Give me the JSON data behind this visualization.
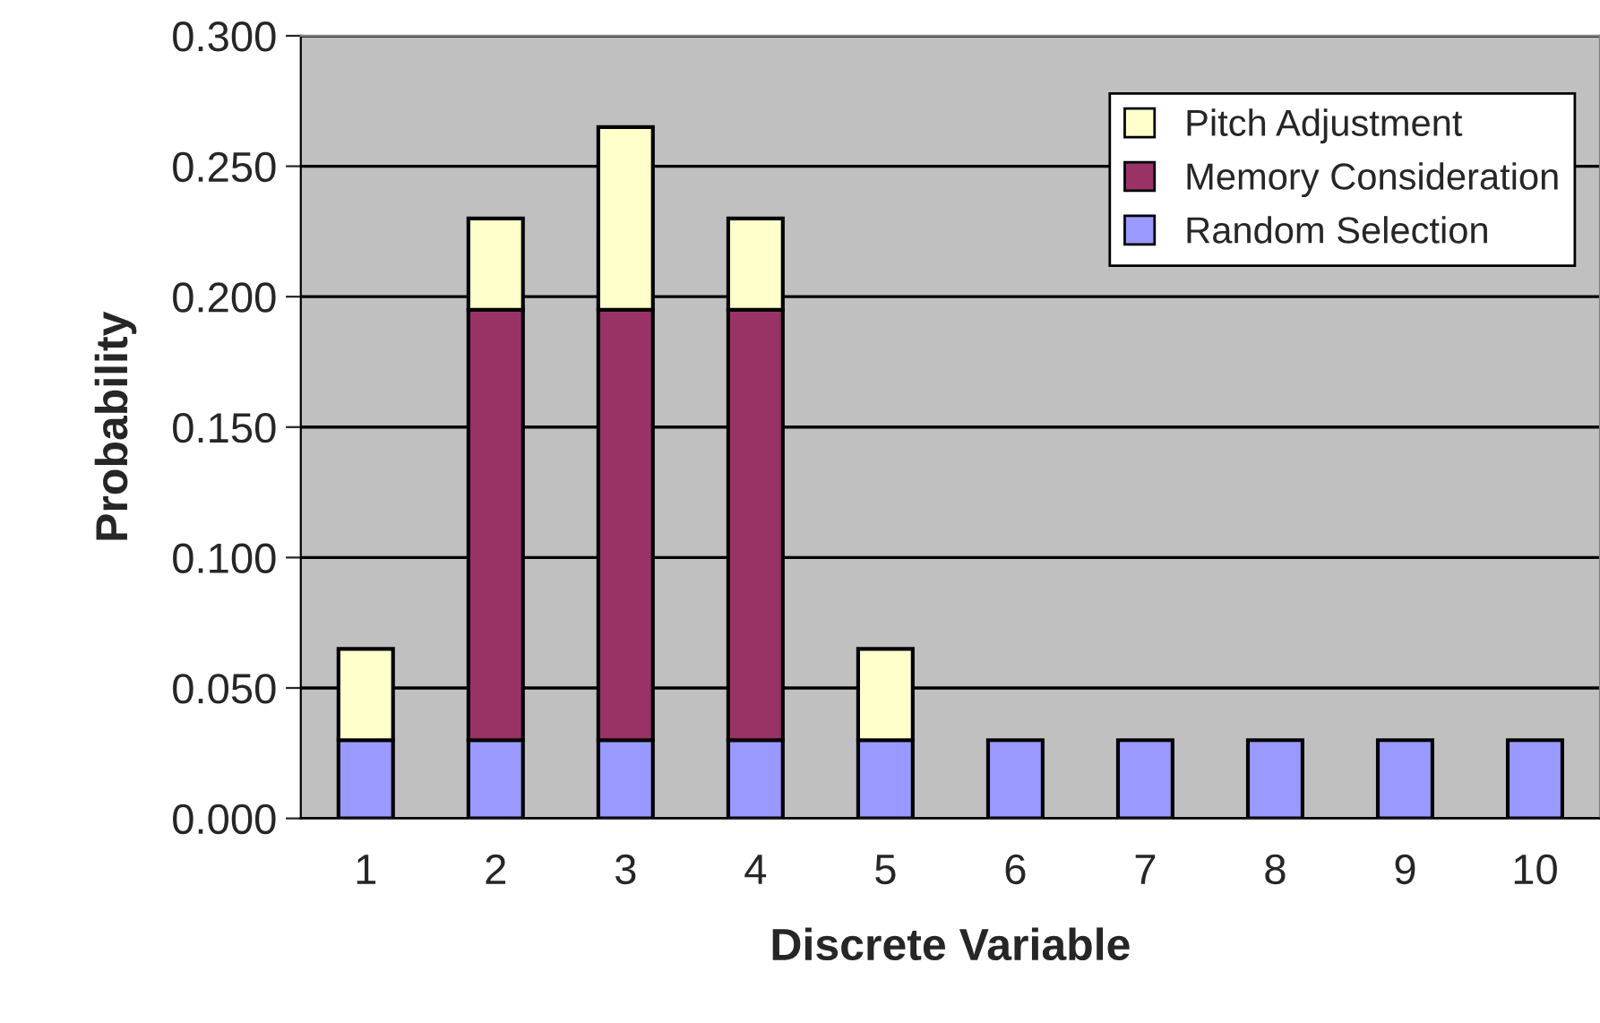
{
  "chart_data": {
    "type": "bar",
    "stacked": true,
    "xlabel": "Discrete Variable",
    "ylabel": "Probability",
    "categories": [
      "1",
      "2",
      "3",
      "4",
      "5",
      "6",
      "7",
      "8",
      "9",
      "10"
    ],
    "series": [
      {
        "name": "Random Selection",
        "color": "#9999ff",
        "values": [
          0.03,
          0.03,
          0.03,
          0.03,
          0.03,
          0.03,
          0.03,
          0.03,
          0.03,
          0.03
        ]
      },
      {
        "name": "Memory Consideration",
        "color": "#993366",
        "values": [
          null,
          0.165,
          0.165,
          0.165,
          null,
          null,
          null,
          null,
          null,
          null
        ]
      },
      {
        "name": "Pitch Adjustment",
        "color": "#ffffcc",
        "values": [
          0.035,
          0.035,
          0.07,
          0.035,
          0.035,
          null,
          null,
          null,
          null,
          null
        ]
      }
    ],
    "ylim": [
      0,
      0.3
    ],
    "yticks": [
      {
        "value": 0,
        "label": "0.000"
      },
      {
        "value": 0.05,
        "label": "0.050"
      },
      {
        "value": 0.1,
        "label": "0.100"
      },
      {
        "value": 0.15,
        "label": "0.150"
      },
      {
        "value": 0.2,
        "label": "0.200"
      },
      {
        "value": 0.25,
        "label": "0.250"
      },
      {
        "value": 0.3,
        "label": "0.300"
      }
    ],
    "grid": "y",
    "legend": "top right"
  }
}
